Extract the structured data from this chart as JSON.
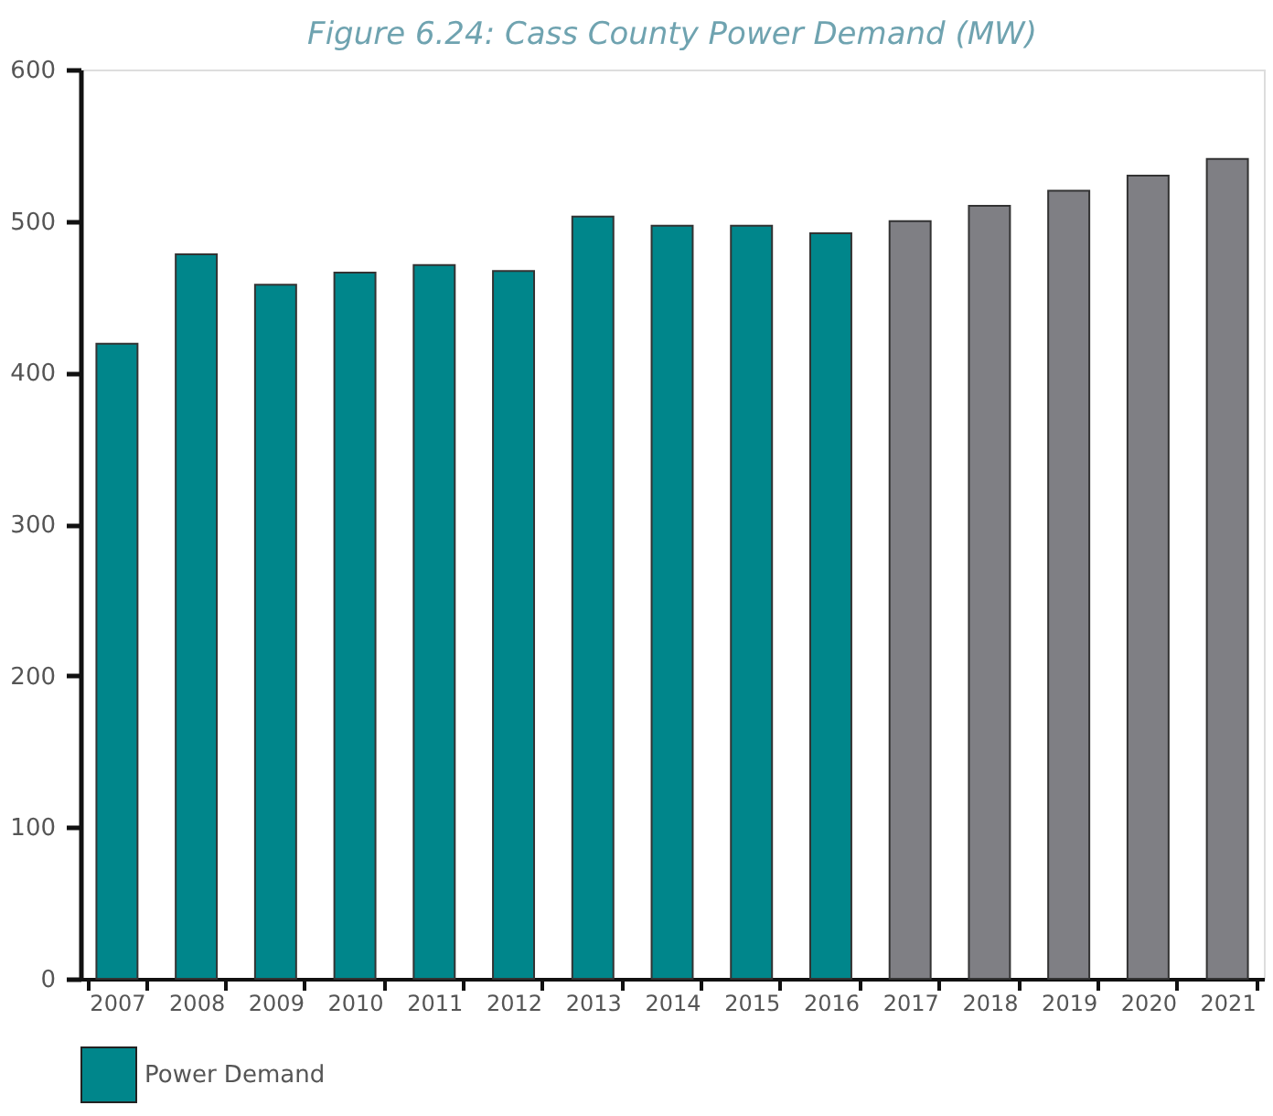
{
  "chart_data": {
    "type": "bar",
    "title": "Figure 6.24: Cass County Power Demand (MW)",
    "categories": [
      "2007",
      "2008",
      "2009",
      "2010",
      "2011",
      "2012",
      "2013",
      "2014",
      "2015",
      "2016",
      "2017",
      "2018",
      "2019",
      "2020",
      "2021"
    ],
    "series": [
      {
        "name": "Power Demand",
        "color": "#00868b",
        "colors": [
          "#00868b",
          "#00868b",
          "#00868b",
          "#00868b",
          "#00868b",
          "#00868b",
          "#00868b",
          "#00868b",
          "#00868b",
          "#00868b",
          "#7f7f84",
          "#7f7f84",
          "#7f7f84",
          "#7f7f84",
          "#7f7f84"
        ],
        "values": [
          419,
          478,
          458,
          466,
          471,
          467,
          503,
          497,
          497,
          492,
          500,
          510,
          520,
          530,
          541
        ]
      }
    ],
    "ylim": [
      0,
      600
    ],
    "yticks": [
      0,
      100,
      200,
      300,
      400,
      500,
      600
    ],
    "grid": false,
    "legend": "bottom"
  }
}
